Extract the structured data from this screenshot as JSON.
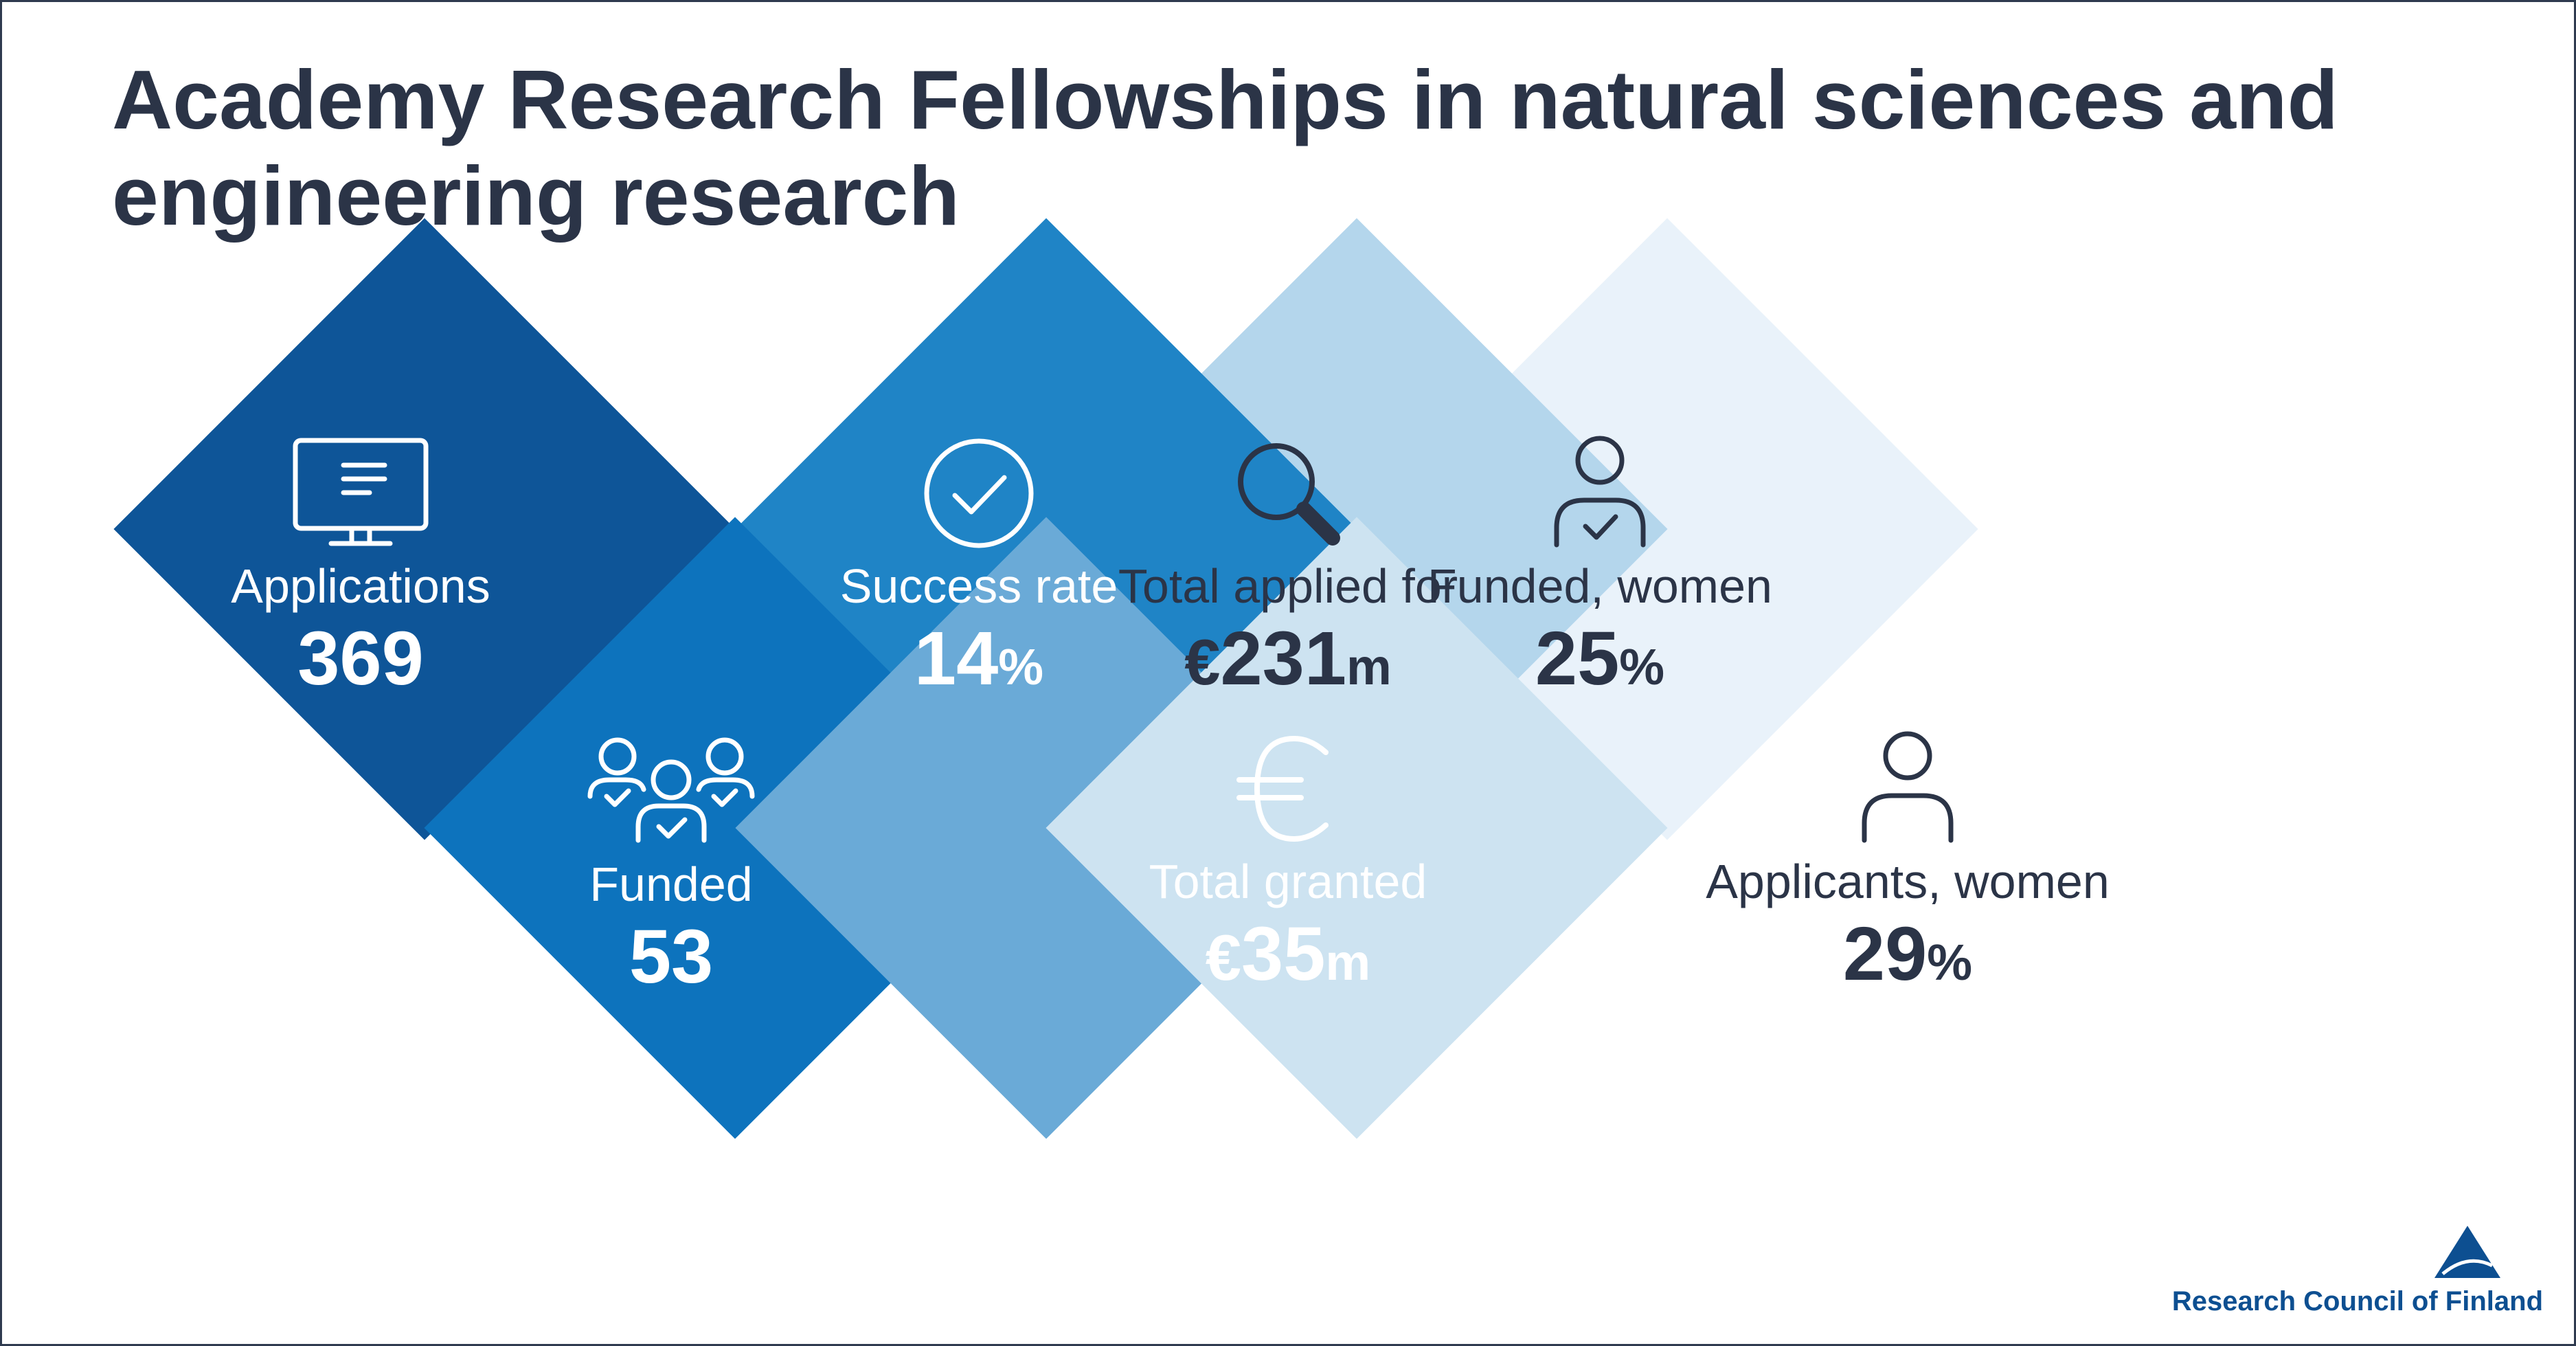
{
  "title": "Academy Research Fellowships in natural sciences and engineering research",
  "colors": {
    "diamond_1": "#0e5598",
    "diamond_2": "#0d73bd",
    "diamond_3": "#1f84c6",
    "diamond_4": "#6aaad7",
    "diamond_5": "#b4d6ec",
    "diamond_6": "#cde3f1",
    "diamond_7": "#e9f2fa",
    "title_text": "#2b3447",
    "logo": "#0d4f91"
  },
  "stats": [
    {
      "id": "applications",
      "icon": "monitor-icon",
      "label": "Applications",
      "value": "369"
    },
    {
      "id": "funded",
      "icon": "group-check-icon",
      "label": "Funded",
      "value": "53"
    },
    {
      "id": "success_rate",
      "icon": "check-circle-icon",
      "label": "Success rate",
      "value_number": "14",
      "value_suffix": "%"
    },
    {
      "id": "total_granted",
      "icon": "euro-icon",
      "label": "Total granted",
      "value_prefix": "€",
      "value_number": "35",
      "value_suffix": "m"
    },
    {
      "id": "total_applied",
      "icon": "magnifier-icon",
      "label": "Total applied for",
      "value_prefix": "€",
      "value_number": "231",
      "value_suffix": "m"
    },
    {
      "id": "applicants_women",
      "icon": "person-icon",
      "label": "Applicants, women",
      "value_number": "29",
      "value_suffix": "%"
    },
    {
      "id": "funded_women",
      "icon": "person-check-icon",
      "label": "Funded, women",
      "value_number": "25",
      "value_suffix": "%"
    }
  ],
  "logo": {
    "text": "Research Council of Finland",
    "icon": "triangle-logo-icon"
  }
}
